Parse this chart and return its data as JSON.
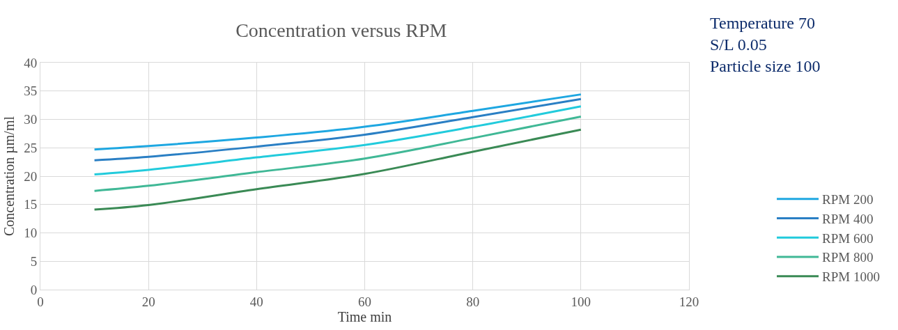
{
  "chart_data": {
    "type": "line",
    "title": "Concentration versus RPM",
    "xlabel": "Time min",
    "ylabel": "Concentration µm/ml",
    "annotations": [
      "Temperature 70\nS/L 0.05\nParticle size 100"
    ],
    "x": [
      10,
      20,
      40,
      60,
      80,
      100
    ],
    "series": [
      {
        "name": "RPM 200",
        "color": "#1ea7e1",
        "values": [
          24.7,
          25.3,
          26.8,
          28.7,
          31.5,
          34.4
        ]
      },
      {
        "name": "RPM 400",
        "color": "#2a7fc4",
        "values": [
          22.8,
          23.4,
          25.2,
          27.3,
          30.4,
          33.6
        ]
      },
      {
        "name": "RPM 600",
        "color": "#22cbdc",
        "values": [
          20.3,
          21.1,
          23.3,
          25.5,
          28.7,
          32.3
        ]
      },
      {
        "name": "RPM 800",
        "color": "#40b896",
        "values": [
          17.4,
          18.3,
          20.7,
          23.1,
          26.7,
          30.5
        ]
      },
      {
        "name": "RPM 1000",
        "color": "#3a8a55",
        "values": [
          14.1,
          14.9,
          17.7,
          20.4,
          24.3,
          28.2
        ]
      }
    ],
    "xlim": [
      0,
      120
    ],
    "xticks": [
      0,
      20,
      40,
      60,
      80,
      100,
      120
    ],
    "ylim": [
      0,
      40
    ],
    "yticks": [
      0,
      5,
      10,
      15,
      20,
      25,
      30,
      35,
      40
    ],
    "grid": true,
    "legend": "right",
    "marker": "none",
    "line_style": "solid"
  }
}
